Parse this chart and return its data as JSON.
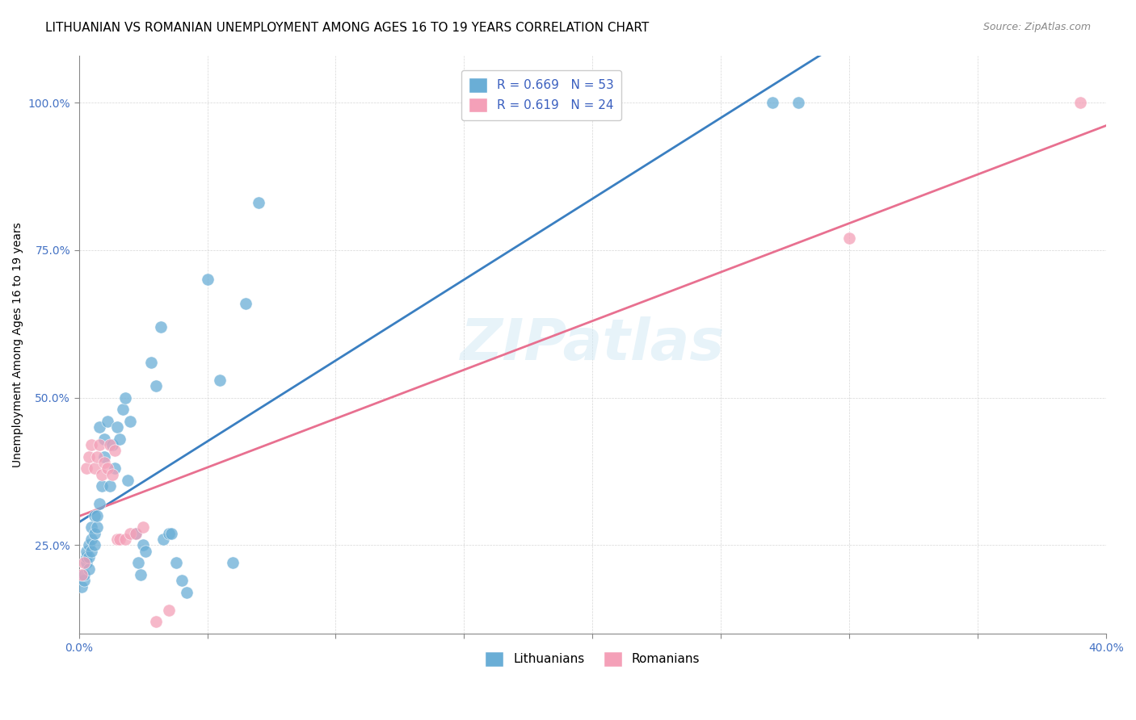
{
  "title": "LITHUANIAN VS ROMANIAN UNEMPLOYMENT AMONG AGES 16 TO 19 YEARS CORRELATION CHART",
  "source": "Source: ZipAtlas.com",
  "xlim": [
    0.0,
    0.4
  ],
  "ylim": [
    0.1,
    1.08
  ],
  "ylabel": "Unemployment Among Ages 16 to 19 years",
  "blue_color": "#6aaed6",
  "pink_color": "#f4a0b8",
  "trendline_blue": "#3a7fc1",
  "trendline_pink": "#e87090",
  "watermark": "ZIPatlas",
  "lit_x": [
    0.001,
    0.002,
    0.002,
    0.003,
    0.003,
    0.003,
    0.004,
    0.004,
    0.004,
    0.005,
    0.005,
    0.005,
    0.006,
    0.006,
    0.006,
    0.007,
    0.007,
    0.008,
    0.008,
    0.009,
    0.01,
    0.01,
    0.011,
    0.012,
    0.013,
    0.014,
    0.015,
    0.016,
    0.017,
    0.018,
    0.019,
    0.02,
    0.022,
    0.023,
    0.024,
    0.025,
    0.026,
    0.028,
    0.03,
    0.032,
    0.033,
    0.035,
    0.036,
    0.038,
    0.04,
    0.042,
    0.05,
    0.055,
    0.06,
    0.065,
    0.07,
    0.27,
    0.28
  ],
  "lit_y": [
    0.18,
    0.19,
    0.2,
    0.22,
    0.23,
    0.24,
    0.21,
    0.23,
    0.25,
    0.24,
    0.26,
    0.28,
    0.25,
    0.27,
    0.3,
    0.28,
    0.3,
    0.32,
    0.45,
    0.35,
    0.4,
    0.43,
    0.46,
    0.35,
    0.42,
    0.38,
    0.45,
    0.43,
    0.48,
    0.5,
    0.36,
    0.46,
    0.27,
    0.22,
    0.2,
    0.25,
    0.24,
    0.56,
    0.52,
    0.62,
    0.26,
    0.27,
    0.27,
    0.22,
    0.19,
    0.17,
    0.7,
    0.53,
    0.22,
    0.66,
    0.83,
    1.0,
    1.0
  ],
  "rom_x": [
    0.001,
    0.002,
    0.003,
    0.004,
    0.005,
    0.006,
    0.007,
    0.008,
    0.009,
    0.01,
    0.011,
    0.012,
    0.013,
    0.014,
    0.015,
    0.016,
    0.018,
    0.02,
    0.022,
    0.025,
    0.03,
    0.035,
    0.3,
    0.39
  ],
  "rom_y": [
    0.2,
    0.22,
    0.38,
    0.4,
    0.42,
    0.38,
    0.4,
    0.42,
    0.37,
    0.39,
    0.38,
    0.42,
    0.37,
    0.41,
    0.26,
    0.26,
    0.26,
    0.27,
    0.27,
    0.28,
    0.12,
    0.14,
    0.77,
    1.0
  ],
  "title_fontsize": 11,
  "axis_label_fontsize": 10,
  "tick_fontsize": 10,
  "legend_r_blue": "R = 0.669",
  "legend_n_blue": "N = 53",
  "legend_r_pink": "R = 0.619",
  "legend_n_pink": "N = 24",
  "legend_label_blue": "Lithuanians",
  "legend_label_pink": "Romanians"
}
